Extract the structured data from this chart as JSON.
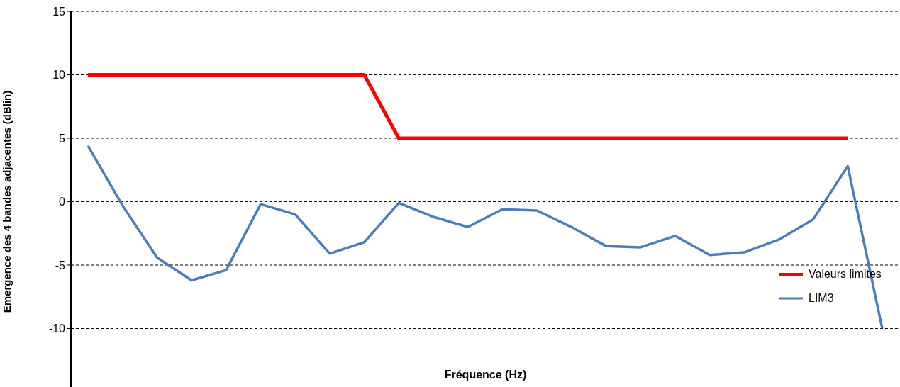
{
  "chart_data": {
    "type": "line",
    "xlabel": "Fréquence (Hz)",
    "ylabel": "Emergence des 4 bandes adjacentes (dBlin)",
    "categories": [
      null,
      null,
      null,
      null,
      null,
      null,
      null,
      null,
      null,
      null,
      null,
      null,
      null,
      null,
      null,
      null,
      null,
      null,
      null,
      null,
      null,
      null,
      null,
      null
    ],
    "series": [
      {
        "name": "Valeurs limites",
        "color": "#ff0000",
        "values": [
          10,
          10,
          10,
          10,
          10,
          10,
          10,
          10,
          10,
          5,
          5,
          5,
          5,
          5,
          5,
          5,
          5,
          5,
          5,
          5,
          5,
          5,
          5,
          null
        ]
      },
      {
        "name": "LIM3",
        "color": "#4a7ebb",
        "values": [
          4.4,
          -0.3,
          -4.4,
          -6.2,
          -5.4,
          -0.2,
          -1.0,
          -4.1,
          -3.2,
          -0.1,
          -1.2,
          -2.0,
          -0.6,
          -0.7,
          -2.0,
          -3.5,
          -3.6,
          -2.7,
          -4.2,
          -4.0,
          -3.0,
          -1.4,
          2.8,
          -10.0
        ]
      }
    ],
    "ylim": [
      -15,
      15
    ],
    "yticks": [
      -10,
      -5,
      0,
      5,
      10,
      15
    ],
    "grid": "y",
    "legend": "right",
    "tick_labels": "y",
    "marker": "none",
    "line_style": "solid"
  }
}
